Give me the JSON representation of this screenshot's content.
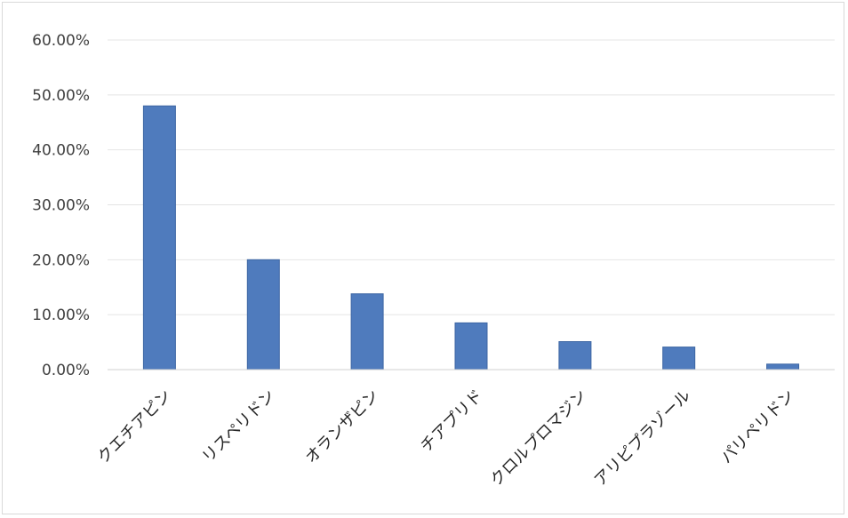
{
  "chart_data": {
    "type": "bar",
    "title": "",
    "xlabel": "",
    "ylabel": "",
    "categories": [
      "クエチアピン",
      "リスペリドン",
      "オランザピン",
      "チアプリド",
      "クロルプロマジン",
      "アリピプラゾール",
      "パリペリドン"
    ],
    "values": [
      0.48,
      0.2,
      0.138,
      0.085,
      0.051,
      0.041,
      0.01
    ],
    "ylim": [
      0,
      0.6
    ],
    "yticks": [
      0,
      0.1,
      0.2,
      0.3,
      0.4,
      0.5,
      0.6
    ],
    "ytick_labels": [
      "0.00%",
      "10.00%",
      "20.00%",
      "30.00%",
      "40.00%",
      "50.00%",
      "60.00%"
    ],
    "grid": true,
    "legend": "none",
    "bar_color": "#4f7bbd",
    "bar_edge_color": "#3d66a3"
  }
}
